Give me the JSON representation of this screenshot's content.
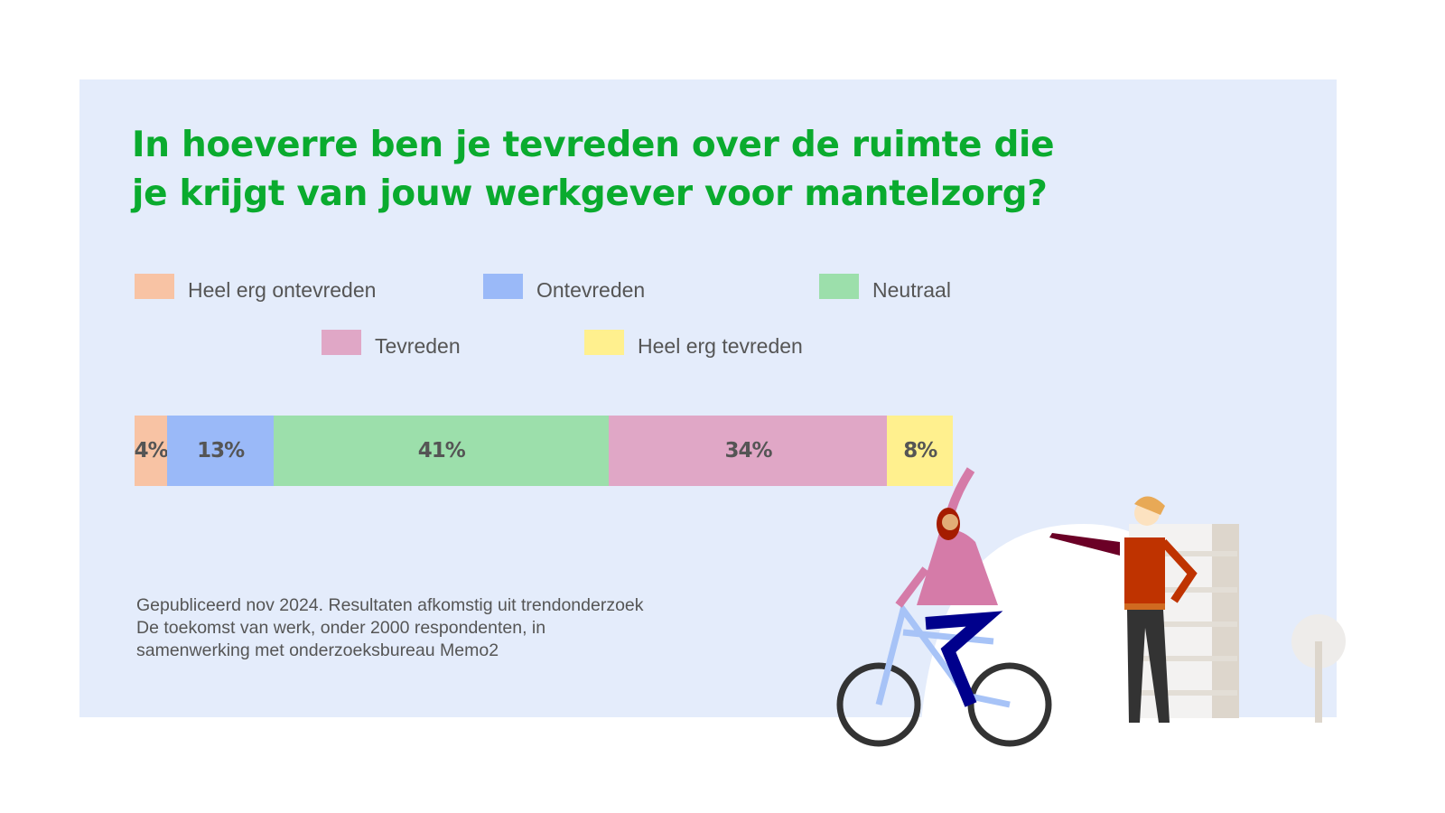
{
  "chart_data": {
    "type": "bar",
    "orientation": "horizontal-stacked",
    "title": "In hoeverre ben je tevreden over de ruimte die je krijgt van jouw werkgever voor mantelzorg?",
    "title_lines": [
      "In hoeverre ben je tevreden over de ruimte die",
      "je krijgt van jouw werkgever voor mantelzorg?"
    ],
    "unit": "%",
    "legend_placement": "top",
    "series": [
      {
        "name": "Heel erg ontevreden",
        "value": 4,
        "label": "4%",
        "color": "#f8c3a4"
      },
      {
        "name": "Ontevreden",
        "value": 13,
        "label": "13%",
        "color": "#9ab9f8"
      },
      {
        "name": "Neutraal",
        "value": 41,
        "label": "41%",
        "color": "#9cdfab"
      },
      {
        "name": "Tevreden",
        "value": 34,
        "label": "34%",
        "color": "#e0a7c6"
      },
      {
        "name": "Heel erg tevreden",
        "value": 8,
        "label": "8%",
        "color": "#fff08e"
      }
    ]
  },
  "footnote": [
    "Gepubliceerd nov 2024. Resultaten afkomstig uit trendonderzoek",
    "De toekomst van werk, onder 2000 respondenten, in",
    "samenwerking met onderzoeksbureau Memo2"
  ],
  "colors": {
    "title": "#0aab2e",
    "background": "#e4ecfb"
  }
}
